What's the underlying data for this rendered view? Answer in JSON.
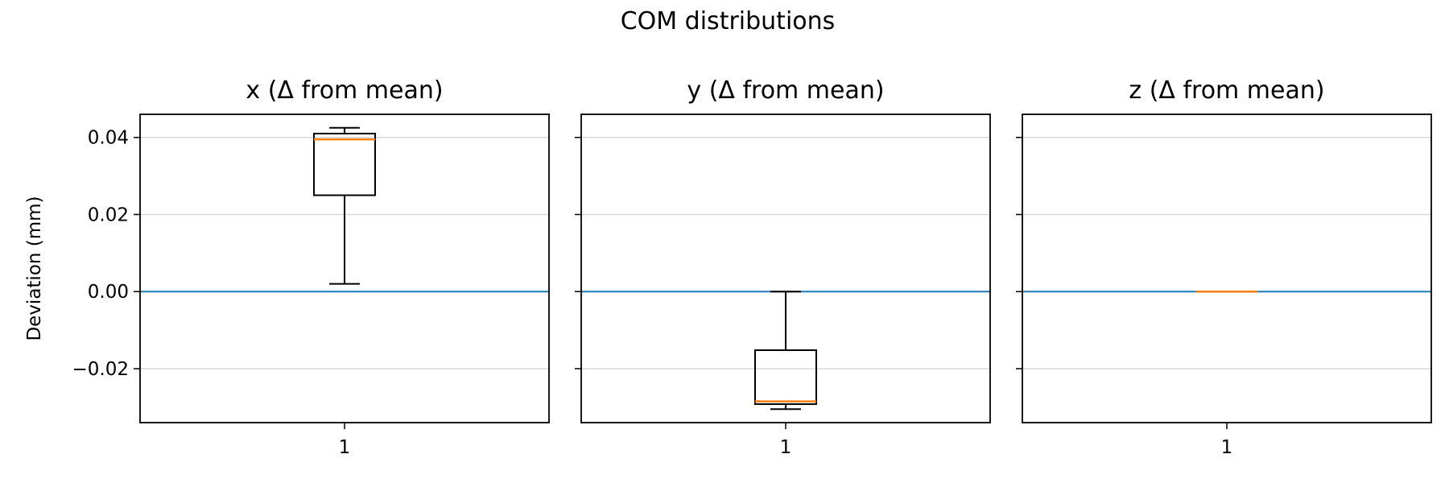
{
  "title": "COM distributions",
  "colors": {
    "box": "#000000",
    "median": "#ff7f0e",
    "zero_line": "#1f77b4",
    "grid": "#d9d9d9",
    "frame": "#000000"
  },
  "chart_data": [
    {
      "type": "box",
      "title": "x (Δ from mean)",
      "ylabel": "Deviation (mm)",
      "categories": [
        "1"
      ],
      "ylim": [
        -0.034,
        0.046
      ],
      "yticks": [
        -0.02,
        0.0,
        0.02,
        0.04
      ],
      "ytick_labels": [
        "−0.02",
        "0.00",
        "0.02",
        "0.04"
      ],
      "grid": "y",
      "reference_line": 0,
      "box": {
        "whisker_low": 0.002,
        "q1": 0.025,
        "median": 0.0395,
        "q3": 0.041,
        "whisker_high": 0.0425
      }
    },
    {
      "type": "box",
      "title": "y (Δ from mean)",
      "ylabel": "",
      "categories": [
        "1"
      ],
      "ylim": [
        -0.034,
        0.046
      ],
      "yticks": [
        -0.02,
        0.0,
        0.02,
        0.04
      ],
      "ytick_labels": [
        "",
        "",
        "",
        ""
      ],
      "grid": "y",
      "reference_line": 0,
      "box": {
        "whisker_low": -0.0305,
        "q1": -0.0292,
        "median": -0.0285,
        "q3": -0.0152,
        "whisker_high": 0.0
      }
    },
    {
      "type": "box",
      "title": "z (Δ from mean)",
      "ylabel": "",
      "categories": [
        "1"
      ],
      "ylim": [
        -0.034,
        0.046
      ],
      "yticks": [
        -0.02,
        0.0,
        0.02,
        0.04
      ],
      "ytick_labels": [
        "",
        "",
        "",
        ""
      ],
      "grid": "y",
      "reference_line": 0,
      "box": {
        "whisker_low": 0.0,
        "q1": 0.0,
        "median": 0.0,
        "q3": 0.0,
        "whisker_high": 0.0
      }
    }
  ]
}
